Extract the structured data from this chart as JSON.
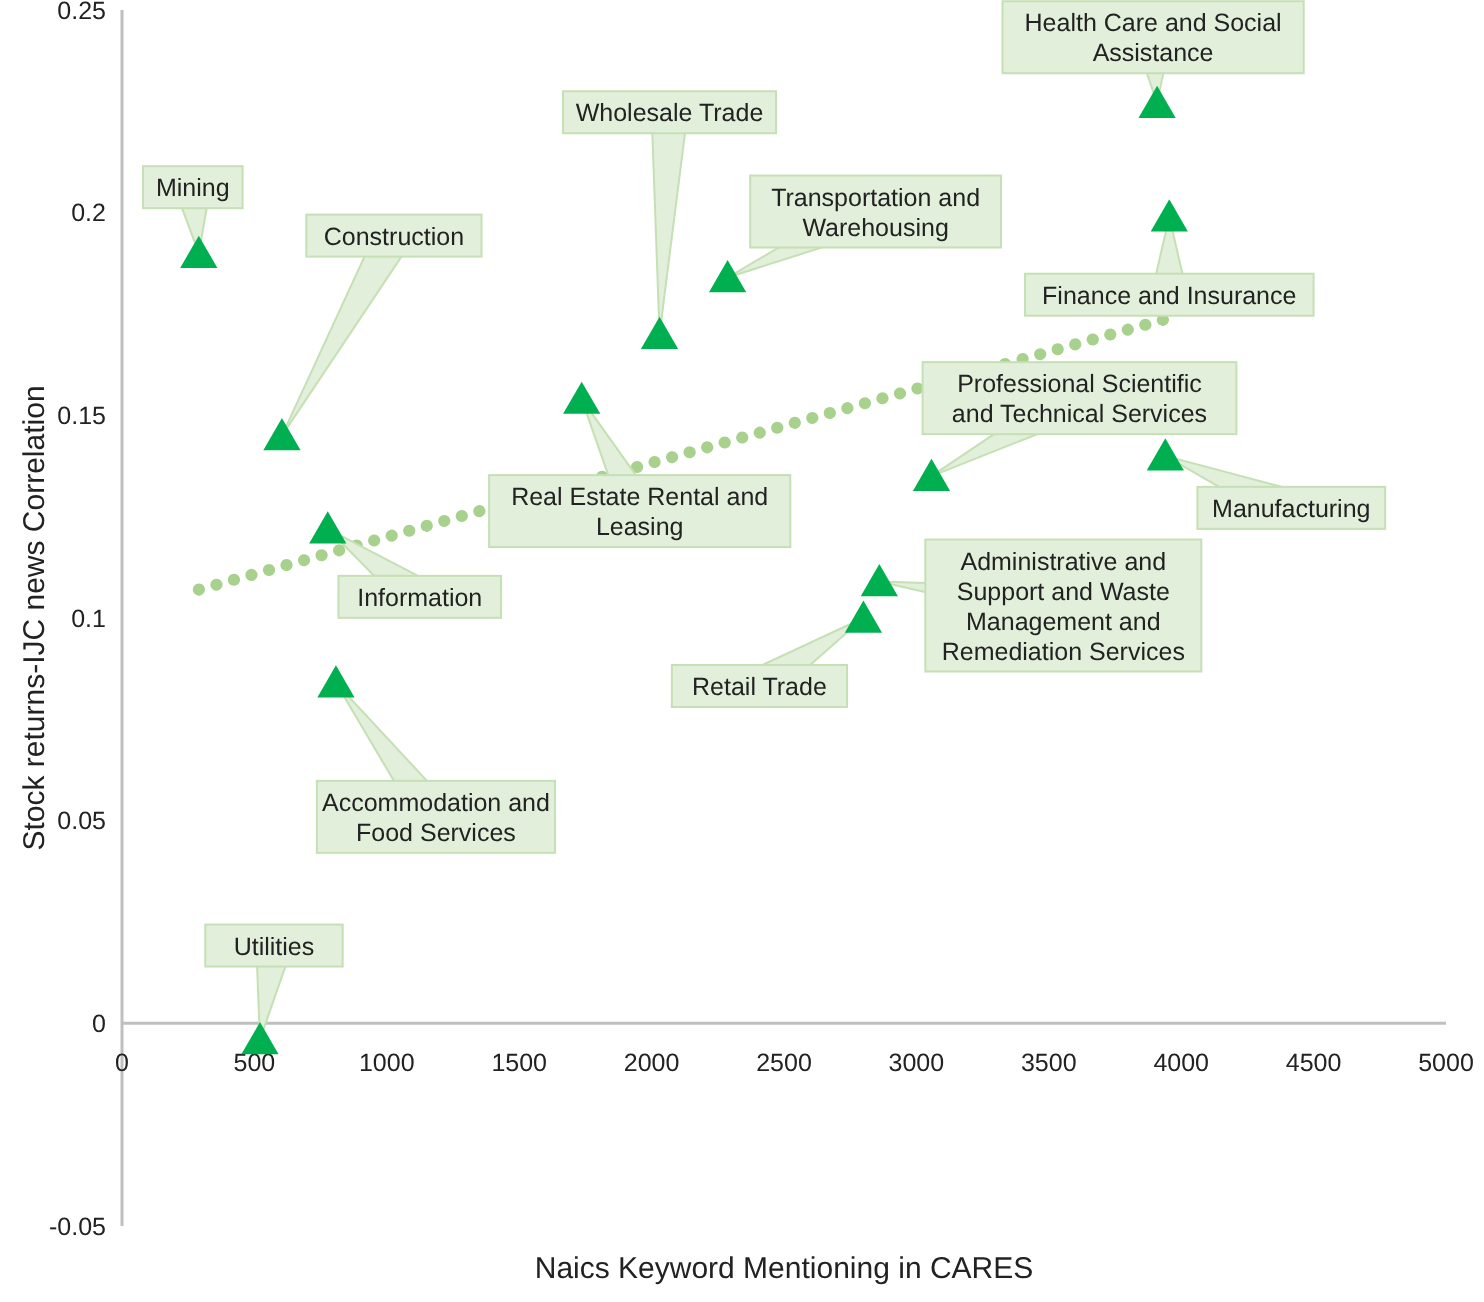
{
  "chart_data": {
    "type": "scatter",
    "xlabel": "Naics Keyword Mentioning in CARES",
    "ylabel": "Stock returns-IJC news Correlation",
    "xlim": [
      0,
      5000
    ],
    "xticks": [
      0,
      500,
      1000,
      1500,
      2000,
      2500,
      3000,
      3500,
      4000,
      4500,
      5000
    ],
    "ylim": [
      -0.05,
      0.25
    ],
    "yticks": [
      -0.05,
      0,
      0.05,
      0.1,
      0.15,
      0.2,
      0.25
    ],
    "grid": false,
    "series": [
      {
        "type": "scatter",
        "color": "#00b050",
        "marker": "triangle",
        "x": [
          290,
          604,
          777,
          808,
          521,
          1736,
          2030,
          2287,
          3909,
          3955,
          3057,
          3940,
          2860,
          2800
        ],
        "values": [
          0.19,
          0.145,
          0.122,
          0.084,
          -0.004,
          0.154,
          0.17,
          0.184,
          0.227,
          0.199,
          0.135,
          0.14,
          0.109,
          0.1
        ]
      },
      {
        "type": "line",
        "color": "#a9d18e",
        "marker": "none",
        "line_style": "dotted",
        "x": [
          290,
          3955
        ],
        "values": [
          0.107,
          0.174
        ]
      }
    ],
    "annotations": [
      {
        "text": "Mining",
        "x": 290,
        "y": 0.19
      },
      "Construction",
      {
        "text": "Information",
        "x": 777,
        "y": 0.122
      },
      "Accommodation and Food Services",
      {
        "text": "Utilities",
        "x": 521,
        "y": -0.004
      },
      "Real Estate Rental and Leasing",
      {
        "text": "Wholesale Trade",
        "x": 2030,
        "y": 0.17
      },
      {
        "text": "Transportation and Warehousing",
        "x": 2287,
        "y": 0.184
      },
      {
        "text": "Health Care and Social Assistance",
        "x": 3909,
        "y": 0.227
      },
      {
        "text": "Finance and Insurance",
        "x": 3955,
        "y": 0.199
      },
      {
        "text": "Professional Scientific and Technical Services",
        "x": 3057,
        "y": 0.135
      },
      {
        "text": "Manufacturing",
        "x": 3940,
        "y": 0.14
      },
      {
        "text": "Administrative and Support and Waste Management and Remediation Services",
        "x": 2860,
        "y": 0.109
      },
      {
        "text": "Retail Trade",
        "x": 2800,
        "y": 0.1
      }
    ]
  }
}
